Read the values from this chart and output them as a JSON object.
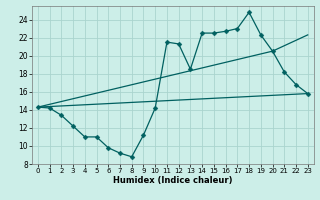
{
  "title": "",
  "xlabel": "Humidex (Indice chaleur)",
  "ylabel": "",
  "bg_color": "#cceee8",
  "grid_color": "#aad4ce",
  "line_color": "#006060",
  "xlim": [
    -0.5,
    23.5
  ],
  "ylim": [
    8,
    25.5
  ],
  "xticks": [
    0,
    1,
    2,
    3,
    4,
    5,
    6,
    7,
    8,
    9,
    10,
    11,
    12,
    13,
    14,
    15,
    16,
    17,
    18,
    19,
    20,
    21,
    22,
    23
  ],
  "yticks": [
    8,
    10,
    12,
    14,
    16,
    18,
    20,
    22,
    24
  ],
  "series": [
    {
      "x": [
        0,
        1,
        2,
        3,
        4,
        5,
        6,
        7,
        8,
        9,
        10,
        11,
        12,
        13,
        14,
        15,
        16,
        17,
        18,
        19,
        20,
        21,
        22,
        23
      ],
      "y": [
        14.3,
        14.2,
        13.4,
        12.2,
        11.0,
        11.0,
        9.8,
        9.2,
        8.8,
        11.2,
        14.2,
        21.5,
        21.3,
        18.5,
        22.5,
        22.5,
        22.7,
        23.0,
        24.8,
        22.3,
        20.5,
        18.2,
        16.8,
        15.8
      ],
      "marker": "D",
      "markersize": 2.5,
      "linewidth": 0.9
    },
    {
      "x": [
        0,
        20,
        23
      ],
      "y": [
        14.3,
        20.5,
        22.3
      ],
      "marker": null,
      "markersize": 0,
      "linewidth": 0.9
    },
    {
      "x": [
        0,
        23
      ],
      "y": [
        14.3,
        15.8
      ],
      "marker": null,
      "markersize": 0,
      "linewidth": 0.9
    }
  ]
}
